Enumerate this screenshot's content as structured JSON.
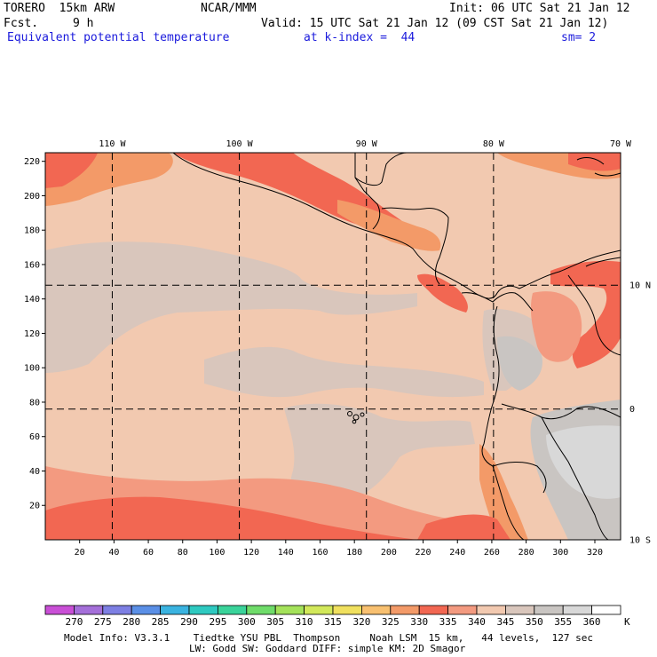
{
  "header": {
    "model": "TORERO  15km ARW",
    "org": "NCAR/MMM",
    "init": "Init: 06 UTC Sat 21 Jan 12",
    "fcst_label": "Fcst.",
    "fcst_value": "9 h",
    "valid": "Valid: 15 UTC Sat 21 Jan 12 (09 CST Sat 21 Jan 12)",
    "field": "Equivalent potential temperature",
    "level": "at k-index =  44",
    "smooth": "sm= 2"
  },
  "map": {
    "lon_labels": [
      {
        "label": "110 W",
        "lon": -110
      },
      {
        "label": "100 W",
        "lon": -100
      },
      {
        "label": "90 W",
        "lon": -90
      },
      {
        "label": "80 W",
        "lon": -80
      },
      {
        "label": "70 W",
        "lon": -70
      }
    ],
    "lat_labels": [
      {
        "label": "10 N",
        "lat": 10
      },
      {
        "label": "0",
        "lat": 0
      },
      {
        "label": "10 S",
        "lat": -10
      }
    ],
    "y_ticks": [
      20,
      40,
      60,
      80,
      100,
      120,
      140,
      160,
      180,
      200,
      220
    ],
    "x_ticks": [
      20,
      40,
      60,
      80,
      100,
      120,
      140,
      160,
      180,
      200,
      220,
      240,
      260,
      280,
      300,
      320
    ],
    "grid_extent": {
      "nx": 335,
      "ny": 225
    },
    "grid_lines": {
      "lon_grid": [
        39,
        113,
        187,
        261
      ],
      "lat_grid": [
        76,
        148
      ]
    }
  },
  "colorbar": {
    "unit": "K",
    "labels": [
      "270",
      "275",
      "280",
      "285",
      "290",
      "295",
      "300",
      "305",
      "310",
      "315",
      "320",
      "325",
      "330",
      "335",
      "340",
      "345",
      "350",
      "355",
      "360"
    ],
    "colors": [
      "#c94fd6",
      "#a46fd9",
      "#7d7fe3",
      "#5a8fe6",
      "#3ab3e0",
      "#2ec9c0",
      "#3ad39a",
      "#6fdc6a",
      "#a4e25a",
      "#d2e85a",
      "#f0e05e",
      "#f8c070",
      "#f39a68",
      "#f26752",
      "#f39a80",
      "#f2c9b0",
      "#d9c6bc",
      "#c9c5c2",
      "#d8d8d8",
      "#ffffff"
    ]
  },
  "footer": {
    "line1": "Model Info: V3.3.1    Tiedtke YSU PBL  Thompson     Noah LSM  15 km,   44 levels,  127 sec",
    "line2": "LW: Godd SW: Goddard DIFF: simple KM: 2D Smagor"
  }
}
